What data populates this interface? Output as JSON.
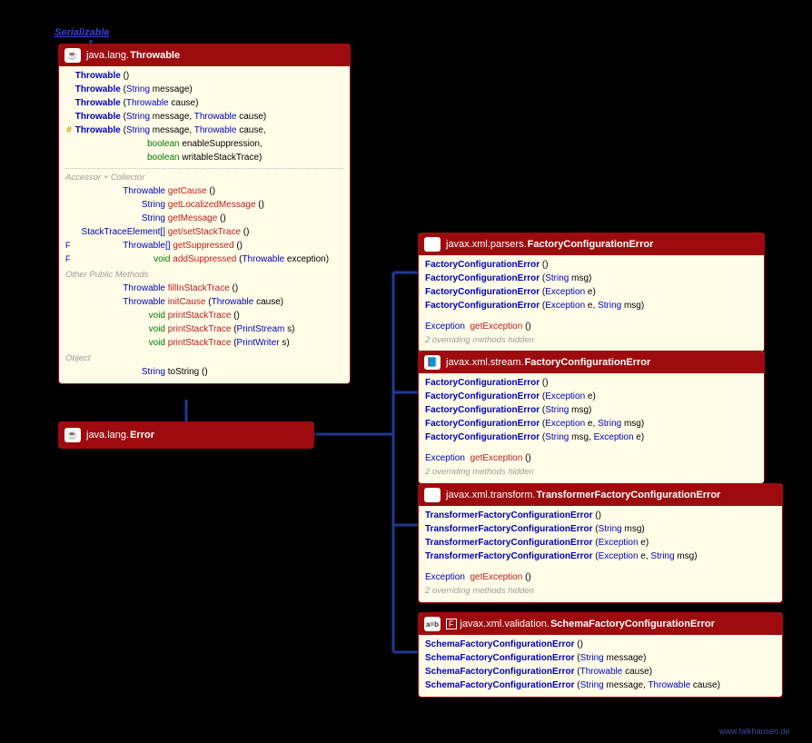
{
  "serializable_label": "Serializable",
  "watermark": "www.falkhausen.de",
  "colors": {
    "header_bg": "#9e0b0e",
    "body_bg": "#fffde8",
    "link": "#0000c0",
    "method": "#c01b1b",
    "prim": "#007a00",
    "connector": "#1f3a93"
  },
  "throwable": {
    "pkg": "java.lang.",
    "name": "Throwable",
    "icon": "☕",
    "constructors": [
      {
        "vis": "",
        "name": "Throwable",
        "params": "()"
      },
      {
        "vis": "",
        "name": "Throwable",
        "params": "(String message)"
      },
      {
        "vis": "",
        "name": "Throwable",
        "params": "(Throwable cause)"
      },
      {
        "vis": "",
        "name": "Throwable",
        "params": "(String message, Throwable cause)"
      },
      {
        "vis": "#",
        "name": "Throwable",
        "params_multi": [
          "(String message, Throwable cause,",
          "boolean enableSuppression,",
          "boolean writableStackTrace)"
        ]
      }
    ],
    "sec1": "Accessor + Collector",
    "accessors": [
      {
        "mod": "",
        "ret": "Throwable",
        "m": "getCause",
        "p": "()"
      },
      {
        "mod": "",
        "ret": "String",
        "m": "getLocalizedMessage",
        "p": "()"
      },
      {
        "mod": "",
        "ret": "String",
        "m": "getMessage",
        "p": "()"
      },
      {
        "mod": "",
        "ret": "StackTraceElement[]",
        "m": "get/setStackTrace",
        "p": "()"
      },
      {
        "mod": "F",
        "ret": "Throwable[]",
        "m": "getSuppressed",
        "p": "()"
      },
      {
        "mod": "F",
        "ret": "void",
        "m": "addSuppressed",
        "p": "(Throwable exception)"
      }
    ],
    "sec2": "Other Public Methods",
    "others": [
      {
        "ret": "Throwable",
        "m": "fillInStackTrace",
        "p": "()"
      },
      {
        "ret": "Throwable",
        "m": "initCause",
        "p": "(Throwable cause)"
      },
      {
        "ret": "void",
        "m": "printStackTrace",
        "p": "()"
      },
      {
        "ret": "void",
        "m": "printStackTrace",
        "p": "(PrintStream s)"
      },
      {
        "ret": "void",
        "m": "printStackTrace",
        "p": "(PrintWriter s)"
      }
    ],
    "sec3": "Object",
    "object_row": {
      "ret": "String",
      "m": "toString",
      "p": "()"
    }
  },
  "error": {
    "pkg": "java.lang.",
    "name": "Error",
    "icon": "☕"
  },
  "sub": [
    {
      "key": "parsersFCE",
      "icon": "⚙",
      "pkg": "javax.xml.parsers.",
      "name": "FactoryConfigurationError",
      "ctors": [
        {
          "n": "FactoryConfigurationError",
          "p": "()"
        },
        {
          "n": "FactoryConfigurationError",
          "p": "(String msg)"
        },
        {
          "n": "FactoryConfigurationError",
          "p": "(Exception e)"
        },
        {
          "n": "FactoryConfigurationError",
          "p": "(Exception e, String msg)"
        }
      ],
      "method": {
        "ret": "Exception",
        "m": "getException",
        "p": "()"
      },
      "hidden": "2 overriding methods hidden"
    },
    {
      "key": "streamFCE",
      "icon": "📘",
      "pkg": "javax.xml.stream.",
      "name": "FactoryConfigurationError",
      "ctors": [
        {
          "n": "FactoryConfigurationError",
          "p": "()"
        },
        {
          "n": "FactoryConfigurationError",
          "p": "(Exception e)"
        },
        {
          "n": "FactoryConfigurationError",
          "p": "(String msg)"
        },
        {
          "n": "FactoryConfigurationError",
          "p": "(Exception e, String msg)"
        },
        {
          "n": "FactoryConfigurationError",
          "p": "(String msg, Exception e)"
        }
      ],
      "method": {
        "ret": "Exception",
        "m": "getException",
        "p": "()"
      },
      "hidden": "2 overriding methods hidden"
    },
    {
      "key": "transformerFCE",
      "icon": "🖨",
      "pkg": "javax.xml.transform.",
      "name": "TransformerFactoryConfigurationError",
      "ctors": [
        {
          "n": "TransformerFactoryConfigurationError",
          "p": "()"
        },
        {
          "n": "TransformerFactoryConfigurationError",
          "p": "(String msg)"
        },
        {
          "n": "TransformerFactoryConfigurationError",
          "p": "(Exception e)"
        },
        {
          "n": "TransformerFactoryConfigurationError",
          "p": "(Exception e, String msg)"
        }
      ],
      "method": {
        "ret": "Exception",
        "m": "getException",
        "p": "()"
      },
      "hidden": "2 overriding methods hidden"
    },
    {
      "key": "schemaFCE",
      "icon": "a=b",
      "icon_style": "text",
      "pkg": "javax.xml.validation.",
      "name": "SchemaFactoryConfigurationError",
      "modifier": "F",
      "ctors": [
        {
          "n": "SchemaFactoryConfigurationError",
          "p": "()"
        },
        {
          "n": "SchemaFactoryConfigurationError",
          "p": "(String message)"
        },
        {
          "n": "SchemaFactoryConfigurationError",
          "p": "(Throwable cause)"
        },
        {
          "n": "SchemaFactoryConfigurationError",
          "p": "(String message, Throwable cause)"
        }
      ]
    }
  ]
}
